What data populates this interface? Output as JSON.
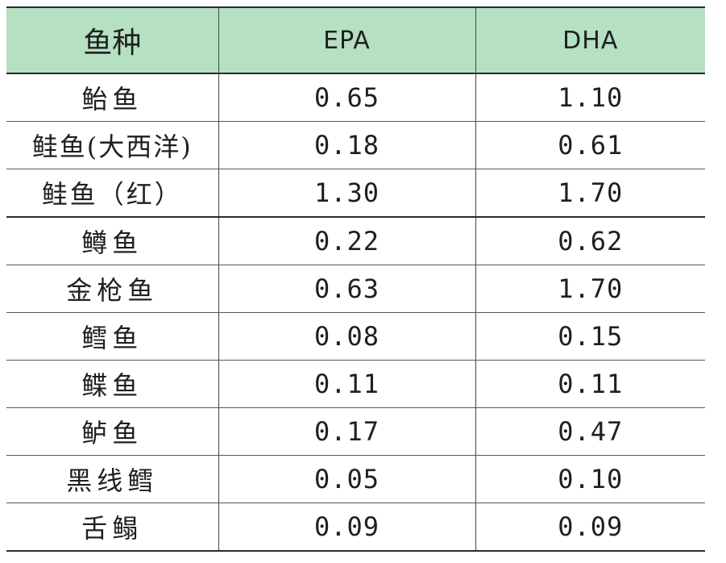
{
  "table": {
    "headers": [
      "鱼种",
      "EPA",
      "DHA"
    ],
    "rows": [
      {
        "fish": "鲐鱼",
        "epa": "0.65",
        "dha": "1.10"
      },
      {
        "fish": "鲑鱼(大西洋)",
        "epa": "0.18",
        "dha": "0.61"
      },
      {
        "fish": "鲑鱼（红）",
        "epa": "1.30",
        "dha": "1.70"
      },
      {
        "fish": "鳟鱼",
        "epa": "0.22",
        "dha": "0.62"
      },
      {
        "fish": "金枪鱼",
        "epa": "0.63",
        "dha": "1.70"
      },
      {
        "fish": "鳕鱼",
        "epa": "0.08",
        "dha": "0.15"
      },
      {
        "fish": "鲽鱼",
        "epa": "0.11",
        "dha": "0.11"
      },
      {
        "fish": "鲈鱼",
        "epa": "0.17",
        "dha": "0.47"
      },
      {
        "fish": "黑线鳕",
        "epa": "0.05",
        "dha": "0.10"
      },
      {
        "fish": "舌鳎",
        "epa": "0.09",
        "dha": "0.09"
      }
    ]
  },
  "colors": {
    "header_bg": "#b5e0c2",
    "text": "#1f1f1f",
    "rule": "#2b2b2b"
  }
}
